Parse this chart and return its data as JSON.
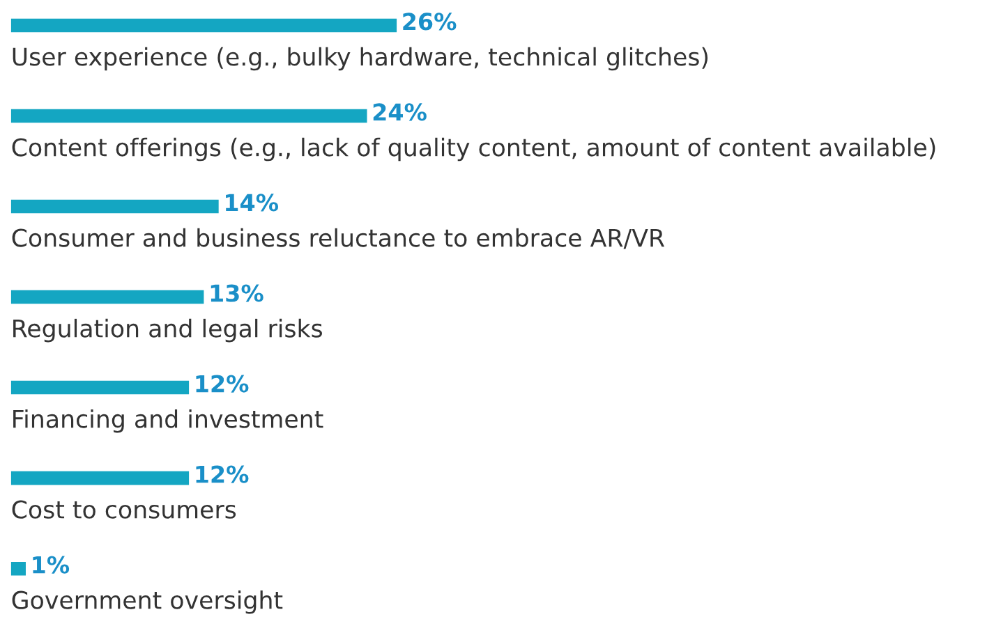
{
  "chart_data": {
    "type": "bar",
    "orientation": "horizontal",
    "categories": [
      "User experience (e.g., bulky hardware, technical glitches)",
      "Content offerings (e.g., lack of quality content, amount of content available)",
      "Consumer and business reluctance to embrace AR/VR",
      "Regulation and legal risks",
      "Financing and investment",
      "Cost to consumers",
      "Government oversight"
    ],
    "values": [
      26,
      24,
      14,
      13,
      12,
      12,
      1
    ],
    "value_labels": [
      "26%",
      "24%",
      "14%",
      "13%",
      "12%",
      "12%",
      "1%"
    ],
    "color": "#14a6c2"
  }
}
